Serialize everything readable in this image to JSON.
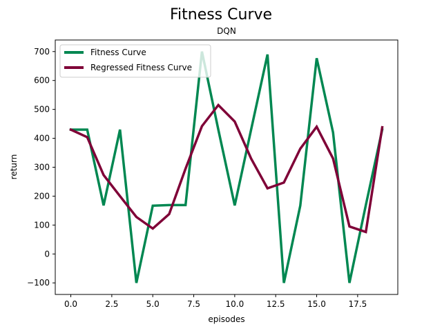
{
  "colors": {
    "fitness": "#008751",
    "regressed": "#7f0037",
    "axis": "#000000",
    "background": "#ffffff"
  },
  "chart_data": {
    "type": "line",
    "title": "Fitness Curve",
    "subtitle": "DQN",
    "xlabel": "episodes",
    "ylabel": "return",
    "xlim": [
      -0.95,
      19.95
    ],
    "ylim": [
      -140,
      740
    ],
    "grid": false,
    "legend_position": "upper-left",
    "x": [
      0,
      1,
      2,
      3,
      4,
      5,
      6,
      7,
      8,
      9,
      10,
      11,
      12,
      13,
      14,
      15,
      16,
      17,
      18,
      19
    ],
    "xticks": [
      0.0,
      2.5,
      5.0,
      7.5,
      10.0,
      12.5,
      15.0,
      17.5
    ],
    "xtick_labels": [
      "0.0",
      "2.5",
      "5.0",
      "7.5",
      "10.0",
      "12.5",
      "15.0",
      "17.5"
    ],
    "yticks": [
      -100,
      0,
      100,
      200,
      300,
      400,
      500,
      600,
      700
    ],
    "ytick_labels": [
      "−100",
      "0",
      "100",
      "200",
      "300",
      "400",
      "500",
      "600",
      "700"
    ],
    "series": [
      {
        "name": "Fitness Curve",
        "color": "#008751",
        "values": [
          430,
          430,
          168,
          430,
          -100,
          167,
          169,
          169,
          700,
          430,
          168,
          430,
          690,
          -100,
          167,
          677,
          420,
          -100,
          169,
          430
        ]
      },
      {
        "name": "Regressed Fitness Curve",
        "color": "#7f0037",
        "values": [
          430,
          404,
          273,
          200,
          128,
          88,
          138,
          295,
          442,
          515,
          458,
          330,
          227,
          247,
          364,
          440,
          330,
          95,
          76,
          438
        ]
      }
    ]
  }
}
